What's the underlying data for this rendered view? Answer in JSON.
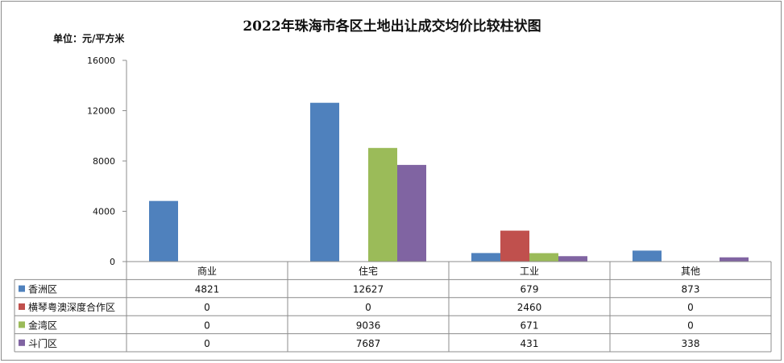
{
  "chart_data": {
    "type": "bar",
    "title": "2022年珠海市各区土地出让成交均价比较柱状图",
    "unit_label": "单位：元/平方米",
    "categories": [
      "商业",
      "住宅",
      "工业",
      "其他"
    ],
    "yticks": [
      "0",
      "4000",
      "8000",
      "12000",
      "16000"
    ],
    "ylim": [
      0,
      16000
    ],
    "grid": false,
    "legend": "data-table",
    "series": [
      {
        "name": "香洲区",
        "color": "#4f81bd",
        "values": [
          4821,
          12627,
          679,
          873
        ]
      },
      {
        "name": "横琴粤澳深度合作区",
        "color": "#c0504d",
        "values": [
          0,
          0,
          2460,
          0
        ]
      },
      {
        "name": "金湾区",
        "color": "#9bbb59",
        "values": [
          0,
          9036,
          671,
          0
        ]
      },
      {
        "name": "斗门区",
        "color": "#8064a2",
        "values": [
          0,
          7687,
          431,
          338
        ]
      }
    ]
  }
}
